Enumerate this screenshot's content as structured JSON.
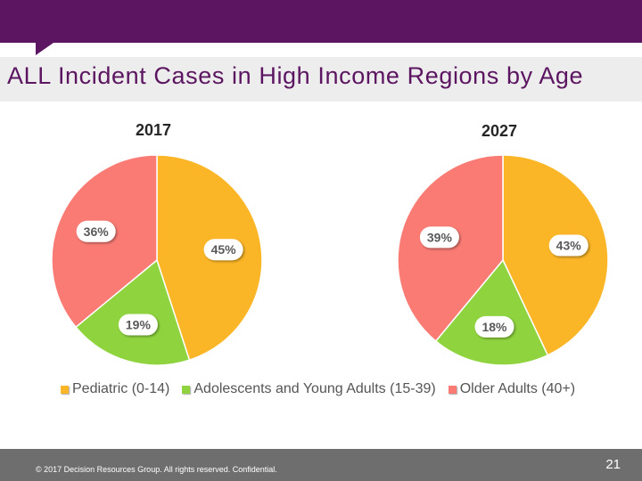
{
  "slide": {
    "title": "ALL Incident Cases in High Income Regions by Age",
    "footer": "© 2017 Decision Resources Group. All rights reserved. Confidential.",
    "page_number": "21"
  },
  "colors": {
    "brand": "#5c1560",
    "pediatric": "#fbb627",
    "adolescents": "#8fd43f",
    "older": "#f97b74"
  },
  "chart_data": [
    {
      "type": "pie",
      "title": "2017",
      "categories": [
        "Pediatric (0-14)",
        "Adolescents and Young Adults (15-39)",
        "Older Adults (40+)"
      ],
      "values": [
        45,
        19,
        36
      ],
      "labels": [
        "45%",
        "19%",
        "36%"
      ]
    },
    {
      "type": "pie",
      "title": "2027",
      "categories": [
        "Pediatric (0-14)",
        "Adolescents and Young Adults (15-39)",
        "Older Adults (40+)"
      ],
      "values": [
        43,
        18,
        39
      ],
      "labels": [
        "43%",
        "18%",
        "39%"
      ]
    }
  ],
  "legend": {
    "placement": "bottom",
    "items": [
      "Pediatric (0-14)",
      "Adolescents and Young Adults (15-39)",
      "Older Adults (40+)"
    ]
  }
}
